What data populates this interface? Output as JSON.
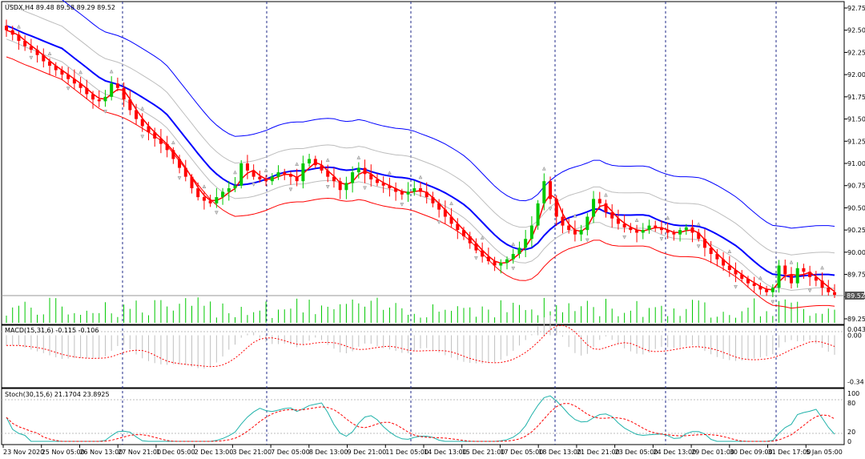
{
  "chart_data": [
    {
      "type": "candlestick",
      "panel": "price",
      "title": "USDX,H4  89.48 89.58 89.29 89.52",
      "symbol": "USDX",
      "timeframe": "H4",
      "ohlc_last": {
        "open": 89.48,
        "high": 89.58,
        "low": 89.29,
        "close": 89.52
      },
      "current_price_label": "89.52",
      "ylim": [
        89.15,
        92.8
      ],
      "y_ticks": [
        "92.75",
        "92.50",
        "92.25",
        "92.00",
        "91.75",
        "91.50",
        "91.25",
        "91.00",
        "90.75",
        "90.50",
        "90.25",
        "90.00",
        "89.75",
        "89.50",
        "89.25"
      ],
      "x_ticks": [
        "23 Nov 2020",
        "25 Nov 05:00",
        "26 Nov 13:00",
        "27 Nov 21:00",
        "1 Dec 05:00",
        "2 Dec 13:00",
        "3 Dec 21:00",
        "7 Dec 05:00",
        "8 Dec 13:00",
        "9 Dec 21:00",
        "11 Dec 05:00",
        "14 Dec 13:00",
        "15 Dec 21:00",
        "17 Dec 05:00",
        "18 Dec 13:00",
        "21 Dec 21:00",
        "23 Dec 05:00",
        "24 Dec 13:00",
        "29 Dec 01:00",
        "30 Dec 09:00",
        "31 Dec 17:00",
        "5 Jan 05:00"
      ],
      "close_path": [
        92.5,
        92.45,
        92.38,
        92.32,
        92.28,
        92.22,
        92.15,
        92.1,
        92.05,
        92.0,
        91.95,
        91.9,
        91.85,
        91.78,
        91.72,
        91.7,
        91.75,
        91.9,
        91.85,
        91.72,
        91.6,
        91.5,
        91.42,
        91.35,
        91.28,
        91.22,
        91.15,
        91.05,
        90.95,
        90.85,
        90.72,
        90.62,
        90.58,
        90.55,
        90.62,
        90.68,
        90.72,
        90.75,
        91.0,
        90.92,
        90.85,
        90.82,
        90.8,
        90.85,
        90.9,
        90.88,
        90.85,
        90.8,
        91.0,
        91.05,
        90.98,
        90.92,
        90.85,
        90.8,
        90.7,
        90.78,
        90.9,
        90.95,
        90.88,
        90.82,
        90.78,
        90.75,
        90.72,
        90.68,
        90.65,
        90.68,
        90.72,
        90.68,
        90.62,
        90.55,
        90.48,
        90.4,
        90.32,
        90.25,
        90.18,
        90.1,
        90.02,
        89.95,
        89.9,
        89.85,
        89.88,
        89.92,
        89.98,
        90.05,
        90.15,
        90.3,
        90.55,
        90.8,
        90.6,
        90.4,
        90.3,
        90.25,
        90.2,
        90.25,
        90.4,
        90.6,
        90.55,
        90.45,
        90.38,
        90.32,
        90.28,
        90.25,
        90.22,
        90.25,
        90.3,
        90.28,
        90.25,
        90.22,
        90.2,
        90.25,
        90.28,
        90.22,
        90.15,
        90.05,
        89.98,
        89.92,
        89.85,
        89.8,
        89.75,
        89.7,
        89.65,
        89.62,
        89.58,
        89.55,
        89.6,
        89.85,
        89.75,
        89.65,
        89.82,
        89.78,
        89.72,
        89.68,
        89.6,
        89.55,
        89.52
      ],
      "overlays": [
        {
          "name": "MA middle",
          "color": "#0000ff"
        },
        {
          "name": "Envelope upper",
          "color": "#0000ff"
        },
        {
          "name": "Envelope lower",
          "color": "#ff0000"
        },
        {
          "name": "Fast MA",
          "color": "#ff0000"
        }
      ],
      "colors": {
        "bull": "#00c800",
        "bear": "#ff0000"
      }
    },
    {
      "type": "histogram",
      "panel": "macd",
      "title": "MACD(15,31,6) -0.115 -0.106",
      "y_ticks": [
        "0.043",
        "0.00",
        "-0.34"
      ],
      "ylim": [
        -0.36,
        0.05
      ],
      "signal_color": "#ff0000",
      "hist_color": "#c0c0c0"
    },
    {
      "type": "line",
      "panel": "stochastic",
      "title": "Stoch(30,15,6) 21.1704 23.8925",
      "y_ticks": [
        "100",
        "80",
        "20",
        "0"
      ],
      "ylim": [
        0,
        100
      ],
      "main_color": "#20b2aa",
      "signal_color": "#ff0000"
    }
  ]
}
